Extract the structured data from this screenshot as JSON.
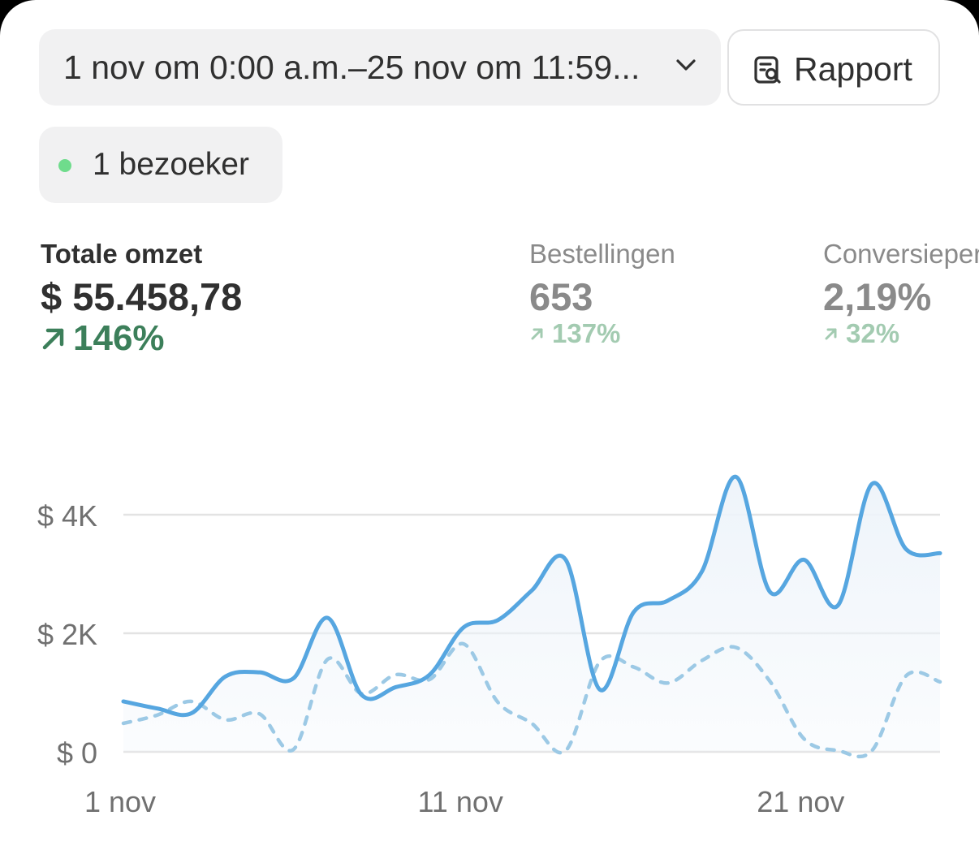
{
  "date_range": {
    "label": "1 nov om 0:00 a.m.–25 nov om 11:59...",
    "icon": "chevron-down-icon"
  },
  "report_button": {
    "label": "Rapport",
    "icon": "report-search-icon"
  },
  "visitors": {
    "label": "1 bezoeker",
    "status_color": "#6fdc8c"
  },
  "metrics": [
    {
      "label": "Totale omzet",
      "value": "$ 55.458,78",
      "change": "146%",
      "icon": "arrow-up-right-icon"
    },
    {
      "label": "Bestellingen",
      "value": "653",
      "change": "137%",
      "icon": "arrow-up-right-icon"
    },
    {
      "label": "Conversiepercentage",
      "value": "2,19%",
      "change": "32%",
      "icon": "arrow-up-right-icon"
    }
  ],
  "chart_data": {
    "type": "line",
    "y_ticks": [
      "$ 0",
      "$ 2K",
      "$ 4K"
    ],
    "x_ticks": [
      "1 nov",
      "11 nov",
      "21 nov"
    ],
    "ylim": [
      0,
      4000
    ],
    "grid": true,
    "colors": {
      "current": "#56a6e0",
      "previous": "#9cc9e5",
      "fill": "#eef4fa"
    },
    "series": [
      {
        "style": "solid",
        "values": [
          850,
          730,
          650,
          1270,
          1340,
          1240,
          2260,
          960,
          1090,
          1300,
          2100,
          2220,
          2720,
          3240,
          1050,
          2360,
          2550,
          3040,
          4640,
          2700,
          3240,
          2470,
          4520,
          3420,
          3350
        ]
      },
      {
        "style": "dashed",
        "values": [
          480,
          620,
          850,
          540,
          640,
          40,
          1560,
          980,
          1300,
          1220,
          1820,
          840,
          480,
          20,
          1520,
          1430,
          1160,
          1540,
          1760,
          1190,
          220,
          20,
          20,
          1280,
          1180
        ]
      }
    ]
  }
}
